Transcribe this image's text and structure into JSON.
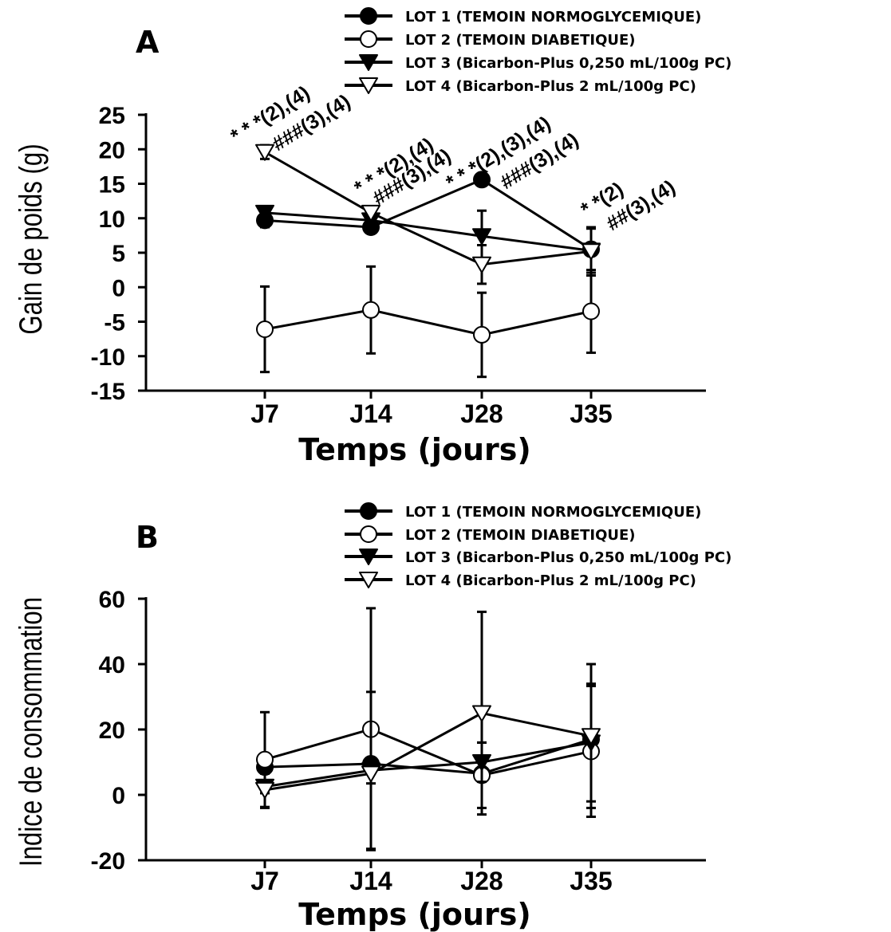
{
  "chart_data": [
    {
      "type": "line",
      "panel": "A",
      "xlabel": "Temps (jours)",
      "ylabel": "Gain de poids (g)",
      "ylim": [
        -15,
        25
      ],
      "yticks": [
        25,
        20,
        15,
        10,
        5,
        0,
        -5,
        -10,
        -15
      ],
      "categories": [
        "J7",
        "J14",
        "J28",
        "J35"
      ],
      "legend": "top-right",
      "series": [
        {
          "name": "LOT 1 (TEMOIN NORMOGLYCEMIQUE)",
          "marker": "circle-filled",
          "values": [
            9.7,
            8.7,
            15.6,
            5.5
          ],
          "errors": [
            1.0,
            0.8,
            0.6,
            0.5
          ]
        },
        {
          "name": "LOT 2 (TEMOIN DIABETIQUE)",
          "marker": "circle-open",
          "values": [
            -6.1,
            -3.3,
            -6.9,
            -3.5
          ],
          "errors": [
            6.2,
            6.3,
            6.1,
            6.0
          ]
        },
        {
          "name": "LOT 3 (Bicarbon-Plus 0,250 mL/100g PC)",
          "marker": "triangle-down-filled",
          "values": [
            10.8,
            9.7,
            7.4,
            5.3
          ],
          "errors": [
            0.6,
            0.6,
            3.7,
            3.2
          ]
        },
        {
          "name": "LOT 4 (Bicarbon-Plus 2 mL/100g PC)",
          "marker": "triangle-down-open",
          "values": [
            19.6,
            10.8,
            3.3,
            5.2
          ],
          "errors": [
            1.0,
            0.8,
            2.8,
            3.5
          ]
        }
      ],
      "annotations": [
        {
          "text": "* * *(2),(4)",
          "at": "J7"
        },
        {
          "text": "###(3),(4)",
          "at": "J7"
        },
        {
          "text": "* * *(2),(4)",
          "at": "J14"
        },
        {
          "text": "###(3),(4)",
          "at": "J14"
        },
        {
          "text": "* * *(2),(3),(4)",
          "at": "J28"
        },
        {
          "text": "###(3),(4)",
          "at": "J28"
        },
        {
          "text": "* *(2)",
          "at": "J35"
        },
        {
          "text": "##(3),(4)",
          "at": "J35"
        }
      ]
    },
    {
      "type": "line",
      "panel": "B",
      "xlabel": "Temps (jours)",
      "ylabel": "Indice de consommation",
      "ylim": [
        -20,
        60
      ],
      "yticks": [
        60,
        40,
        20,
        0,
        -20
      ],
      "categories": [
        "J7",
        "J14",
        "J28",
        "J35"
      ],
      "legend": "top-right",
      "series": [
        {
          "name": "LOT 1 (TEMOIN NORMOGLYCEMIQUE)",
          "marker": "circle-filled",
          "values": [
            8.5,
            9.5,
            6.5,
            17.0
          ],
          "errors": [
            2.0,
            1.0,
            2.0,
            1.0
          ]
        },
        {
          "name": "LOT 2 (TEMOIN DIABETIQUE)",
          "marker": "circle-open",
          "values": [
            10.8,
            20.1,
            6.0,
            13.3
          ],
          "errors": [
            14.5,
            37.0,
            10.0,
            20.0
          ]
        },
        {
          "name": "LOT 3 (Bicarbon-Plus 0,250 mL/100g PC)",
          "marker": "triangle-down-filled",
          "values": [
            2.5,
            7.5,
            10.0,
            16.0
          ],
          "errors": [
            2.0,
            24.0,
            6.0,
            18.0
          ]
        },
        {
          "name": "LOT 4 (Bicarbon-Plus 2 mL/100g PC)",
          "marker": "triangle-down-open",
          "values": [
            1.5,
            6.5,
            25.0,
            18.0
          ],
          "errors": [
            5.5,
            3.0,
            31.0,
            22.0
          ]
        }
      ]
    }
  ]
}
